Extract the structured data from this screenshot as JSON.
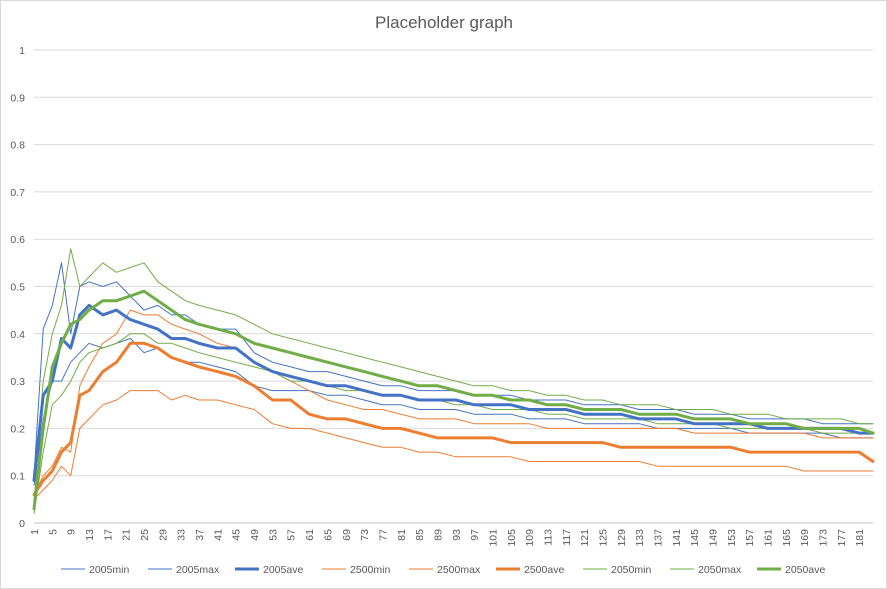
{
  "chart_data": {
    "type": "line",
    "title": "Placeholder graph",
    "xlabel": "",
    "ylabel": "",
    "ylim": [
      0,
      1
    ],
    "yticks": [
      0,
      0.1,
      0.2,
      0.3,
      0.4,
      0.5,
      0.6,
      0.7,
      0.8,
      0.9,
      1
    ],
    "ytick_labels": [
      "0",
      "0.1",
      "0.2",
      "0.3",
      "0.4",
      "0.5",
      "0.6",
      "0.7",
      "0.8",
      "0.9",
      "1"
    ],
    "x_range": [
      1,
      184
    ],
    "xtick_labels": [
      "1",
      "5",
      "9",
      "13",
      "17",
      "21",
      "25",
      "29",
      "33",
      "37",
      "41",
      "45",
      "49",
      "53",
      "57",
      "61",
      "65",
      "69",
      "73",
      "77",
      "81",
      "85",
      "89",
      "93",
      "97",
      "101",
      "105",
      "109",
      "113",
      "117",
      "121",
      "125",
      "129",
      "133",
      "137",
      "141",
      "145",
      "149",
      "153",
      "157",
      "161",
      "165",
      "169",
      "173",
      "177",
      "181"
    ],
    "grid": "horizontal",
    "legend_position": "bottom",
    "sample_x": [
      1,
      3,
      5,
      7,
      9,
      11,
      13,
      16,
      19,
      22,
      25,
      28,
      31,
      34,
      37,
      41,
      45,
      49,
      53,
      57,
      61,
      65,
      69,
      73,
      77,
      81,
      85,
      89,
      93,
      97,
      101,
      105,
      109,
      113,
      117,
      121,
      125,
      129,
      133,
      137,
      141,
      145,
      149,
      153,
      157,
      161,
      165,
      169,
      173,
      177,
      181,
      184
    ],
    "series": [
      {
        "name": "2005min",
        "color": "#4472c4",
        "width": 1,
        "values": [
          0.08,
          0.22,
          0.3,
          0.3,
          0.34,
          0.36,
          0.38,
          0.37,
          0.38,
          0.39,
          0.36,
          0.37,
          0.35,
          0.34,
          0.34,
          0.33,
          0.32,
          0.29,
          0.28,
          0.28,
          0.28,
          0.27,
          0.27,
          0.26,
          0.25,
          0.25,
          0.24,
          0.24,
          0.24,
          0.23,
          0.23,
          0.23,
          0.22,
          0.22,
          0.22,
          0.21,
          0.21,
          0.21,
          0.21,
          0.2,
          0.2,
          0.2,
          0.2,
          0.2,
          0.19,
          0.19,
          0.19,
          0.19,
          0.19,
          0.18,
          0.18,
          0.18
        ]
      },
      {
        "name": "2005max",
        "color": "#4472c4",
        "width": 1,
        "values": [
          0.1,
          0.41,
          0.46,
          0.55,
          0.4,
          0.5,
          0.51,
          0.5,
          0.51,
          0.48,
          0.45,
          0.46,
          0.44,
          0.44,
          0.42,
          0.41,
          0.41,
          0.36,
          0.34,
          0.33,
          0.32,
          0.32,
          0.31,
          0.3,
          0.29,
          0.29,
          0.28,
          0.28,
          0.28,
          0.27,
          0.27,
          0.27,
          0.26,
          0.26,
          0.26,
          0.25,
          0.25,
          0.25,
          0.24,
          0.24,
          0.24,
          0.23,
          0.23,
          0.23,
          0.22,
          0.22,
          0.22,
          0.22,
          0.21,
          0.21,
          0.21,
          0.21
        ]
      },
      {
        "name": "2005ave",
        "color": "#4472c4",
        "width": 3,
        "values": [
          0.09,
          0.27,
          0.3,
          0.39,
          0.37,
          0.44,
          0.46,
          0.44,
          0.45,
          0.43,
          0.42,
          0.41,
          0.39,
          0.39,
          0.38,
          0.37,
          0.37,
          0.34,
          0.32,
          0.31,
          0.3,
          0.29,
          0.29,
          0.28,
          0.27,
          0.27,
          0.26,
          0.26,
          0.26,
          0.25,
          0.25,
          0.25,
          0.24,
          0.24,
          0.24,
          0.23,
          0.23,
          0.23,
          0.22,
          0.22,
          0.22,
          0.21,
          0.21,
          0.21,
          0.21,
          0.2,
          0.2,
          0.2,
          0.2,
          0.2,
          0.19,
          0.19
        ]
      },
      {
        "name": "2500min",
        "color": "#ed7d31",
        "width": 1,
        "values": [
          0.05,
          0.07,
          0.09,
          0.12,
          0.1,
          0.2,
          0.22,
          0.25,
          0.26,
          0.28,
          0.28,
          0.28,
          0.26,
          0.27,
          0.26,
          0.26,
          0.25,
          0.24,
          0.21,
          0.2,
          0.2,
          0.19,
          0.18,
          0.17,
          0.16,
          0.16,
          0.15,
          0.15,
          0.14,
          0.14,
          0.14,
          0.14,
          0.13,
          0.13,
          0.13,
          0.13,
          0.13,
          0.13,
          0.13,
          0.12,
          0.12,
          0.12,
          0.12,
          0.12,
          0.12,
          0.12,
          0.12,
          0.11,
          0.11,
          0.11,
          0.11,
          0.11
        ]
      },
      {
        "name": "2500max",
        "color": "#ed7d31",
        "width": 1,
        "values": [
          0.06,
          0.1,
          0.12,
          0.16,
          0.15,
          0.29,
          0.33,
          0.38,
          0.4,
          0.45,
          0.44,
          0.44,
          0.42,
          0.41,
          0.4,
          0.38,
          0.37,
          0.34,
          0.32,
          0.3,
          0.28,
          0.26,
          0.25,
          0.24,
          0.24,
          0.23,
          0.22,
          0.22,
          0.22,
          0.21,
          0.21,
          0.21,
          0.21,
          0.2,
          0.2,
          0.2,
          0.2,
          0.2,
          0.2,
          0.2,
          0.2,
          0.19,
          0.19,
          0.19,
          0.19,
          0.19,
          0.19,
          0.19,
          0.18,
          0.18,
          0.18,
          0.18
        ]
      },
      {
        "name": "2500ave",
        "color": "#ed7d31",
        "width": 3,
        "values": [
          0.06,
          0.09,
          0.11,
          0.15,
          0.17,
          0.27,
          0.28,
          0.32,
          0.34,
          0.38,
          0.38,
          0.37,
          0.35,
          0.34,
          0.33,
          0.32,
          0.31,
          0.29,
          0.26,
          0.26,
          0.23,
          0.22,
          0.22,
          0.21,
          0.2,
          0.2,
          0.19,
          0.18,
          0.18,
          0.18,
          0.18,
          0.17,
          0.17,
          0.17,
          0.17,
          0.17,
          0.17,
          0.16,
          0.16,
          0.16,
          0.16,
          0.16,
          0.16,
          0.16,
          0.15,
          0.15,
          0.15,
          0.15,
          0.15,
          0.15,
          0.15,
          0.13
        ]
      },
      {
        "name": "2050min",
        "color": "#70ad47",
        "width": 1,
        "values": [
          0.02,
          0.15,
          0.25,
          0.27,
          0.3,
          0.34,
          0.36,
          0.37,
          0.38,
          0.4,
          0.4,
          0.38,
          0.38,
          0.37,
          0.36,
          0.35,
          0.34,
          0.33,
          0.32,
          0.3,
          0.3,
          0.29,
          0.28,
          0.28,
          0.27,
          0.27,
          0.26,
          0.26,
          0.25,
          0.25,
          0.24,
          0.24,
          0.24,
          0.23,
          0.23,
          0.22,
          0.22,
          0.22,
          0.22,
          0.21,
          0.21,
          0.21,
          0.21,
          0.2,
          0.2,
          0.2,
          0.2,
          0.2,
          0.19,
          0.19,
          0.19,
          0.19
        ]
      },
      {
        "name": "2050max",
        "color": "#70ad47",
        "width": 1,
        "values": [
          0.04,
          0.3,
          0.4,
          0.46,
          0.58,
          0.5,
          0.52,
          0.55,
          0.53,
          0.54,
          0.55,
          0.51,
          0.49,
          0.47,
          0.46,
          0.45,
          0.44,
          0.42,
          0.4,
          0.39,
          0.38,
          0.37,
          0.36,
          0.35,
          0.34,
          0.33,
          0.32,
          0.31,
          0.3,
          0.29,
          0.29,
          0.28,
          0.28,
          0.27,
          0.27,
          0.26,
          0.26,
          0.25,
          0.25,
          0.25,
          0.24,
          0.24,
          0.24,
          0.23,
          0.23,
          0.23,
          0.22,
          0.22,
          0.22,
          0.22,
          0.21,
          0.21
        ]
      },
      {
        "name": "2050ave",
        "color": "#70ad47",
        "width": 3,
        "values": [
          0.03,
          0.2,
          0.33,
          0.38,
          0.42,
          0.43,
          0.45,
          0.47,
          0.47,
          0.48,
          0.49,
          0.47,
          0.45,
          0.43,
          0.42,
          0.41,
          0.4,
          0.38,
          0.37,
          0.36,
          0.35,
          0.34,
          0.33,
          0.32,
          0.31,
          0.3,
          0.29,
          0.29,
          0.28,
          0.27,
          0.27,
          0.26,
          0.26,
          0.25,
          0.25,
          0.24,
          0.24,
          0.24,
          0.23,
          0.23,
          0.23,
          0.22,
          0.22,
          0.22,
          0.21,
          0.21,
          0.21,
          0.2,
          0.2,
          0.2,
          0.2,
          0.19
        ]
      }
    ]
  }
}
